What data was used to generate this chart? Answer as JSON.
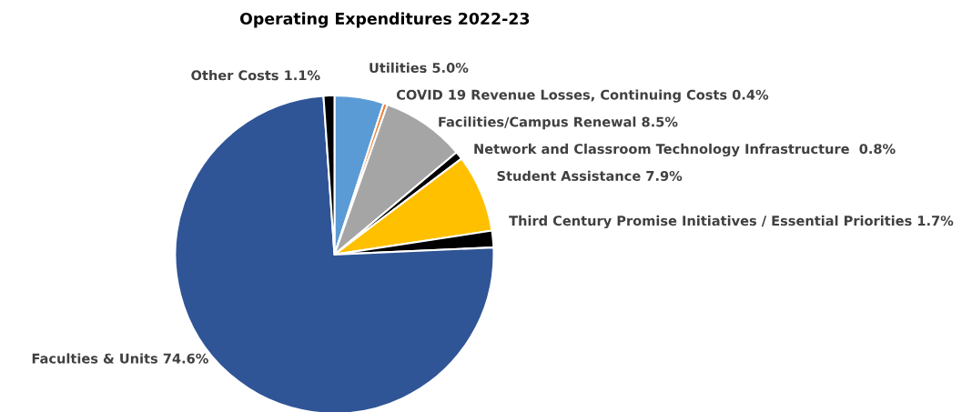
{
  "chart_data": {
    "type": "pie",
    "title": "Operating Expenditures 2022-23",
    "categories": [
      "Utilities",
      "COVID 19 Revenue Losses, Continuing Costs",
      "Facilities/Campus Renewal",
      "Network and Classroom Technology Infrastructure ",
      "Student Assistance",
      "Third Century Promise Initiatives / Essential Priorities",
      "Faculties & Units",
      "Other Costs"
    ],
    "values": [
      5.0,
      0.4,
      8.5,
      0.8,
      7.9,
      1.7,
      74.6,
      1.1
    ],
    "value_labels": [
      "5.0%",
      "0.4%",
      "8.5%",
      "0.8%",
      "7.9%",
      "1.7%",
      "74.6%",
      "1.1%"
    ],
    "colors": [
      "#5b9bd5",
      "#ed7d31",
      "#a5a5a5",
      "#000000",
      "#ffc000",
      "#000000",
      "#2f5597",
      "#000000"
    ],
    "legend": false
  }
}
